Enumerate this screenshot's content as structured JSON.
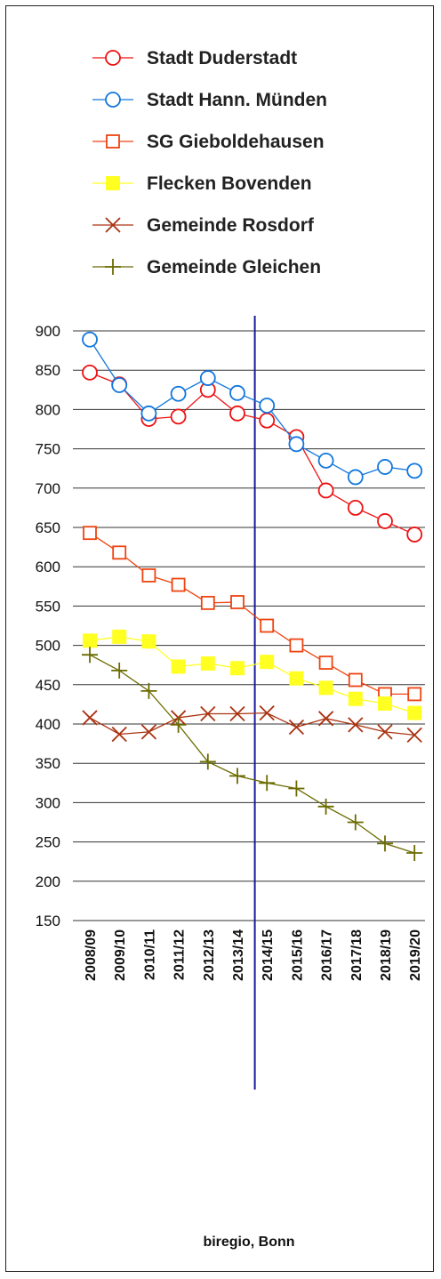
{
  "chart_data": {
    "type": "line",
    "title": "",
    "xlabel": "",
    "ylabel": "",
    "source": "biregio, Bonn",
    "ylim": [
      150,
      900
    ],
    "yticks": [
      150,
      200,
      250,
      300,
      350,
      400,
      450,
      500,
      550,
      600,
      650,
      700,
      750,
      800,
      850,
      900
    ],
    "categories": [
      "2008/09",
      "2009/10",
      "2010/11",
      "2011/12",
      "2012/13",
      "2013/14",
      "2014/15",
      "2015/16",
      "2016/17",
      "2017/18",
      "2018/19",
      "2019/20"
    ],
    "divider_after": "2013/14",
    "grid": "horizontal",
    "legend_position": "top",
    "series": [
      {
        "name": "Stadt Duderstadt",
        "color": "#ee1111",
        "marker": "circle-open",
        "values": [
          847,
          832,
          788,
          791,
          825,
          795,
          786,
          765,
          697,
          675,
          658,
          641
        ]
      },
      {
        "name": "Stadt Hann. Münden",
        "color": "#1177dd",
        "marker": "circle-open",
        "values": [
          889,
          831,
          795,
          820,
          840,
          821,
          805,
          756,
          735,
          714,
          727,
          722
        ]
      },
      {
        "name": "SG Gieboldehausen",
        "color": "#ee4411",
        "marker": "square-open",
        "values": [
          643,
          618,
          589,
          577,
          554,
          555,
          525,
          500,
          478,
          456,
          438,
          438
        ]
      },
      {
        "name": "Flecken Bovenden",
        "color": "#ffff22",
        "marker": "square-filled",
        "values": [
          506,
          511,
          505,
          473,
          477,
          471,
          479,
          458,
          446,
          432,
          426,
          414
        ]
      },
      {
        "name": "Gemeinde Rosdorf",
        "color": "#aa3311",
        "marker": "x",
        "values": [
          408,
          387,
          390,
          408,
          413,
          413,
          414,
          396,
          407,
          399,
          390,
          386
        ]
      },
      {
        "name": "Gemeinde Gleichen",
        "color": "#6b6b00",
        "marker": "plus",
        "values": [
          488,
          468,
          442,
          399,
          352,
          334,
          325,
          318,
          295,
          275,
          248,
          236
        ]
      }
    ]
  }
}
